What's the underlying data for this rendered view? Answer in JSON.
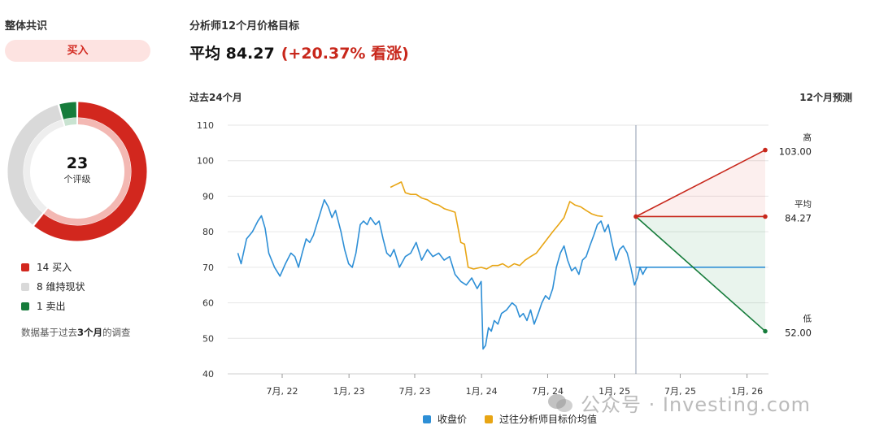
{
  "consensus": {
    "title": "整体共识",
    "rating": "买入",
    "total": "23",
    "total_unit": "个评级",
    "legend": [
      {
        "label": "14 买入",
        "count": 14,
        "color": "#d2271e"
      },
      {
        "label": "8 维持现状",
        "count": 8,
        "color": "#d9d9d9"
      },
      {
        "label": "1 卖出",
        "count": 1,
        "color": "#167c3b"
      }
    ],
    "note_prefix": "数据基于过去",
    "note_bold": "3个月",
    "note_suffix": "的调查"
  },
  "target": {
    "title": "分析师12个月价格目标",
    "average_text": "平均 84.27",
    "change_text": "(+20.37% 看涨)"
  },
  "chart_labels": {
    "past": "过去24个月",
    "forecast": "12个月预测",
    "high_label": "高",
    "high_value": "103.00",
    "avg_label": "平均",
    "avg_value": "84.27",
    "low_label": "低",
    "low_value": "52.00"
  },
  "chart_data": {
    "type": "line",
    "ylim": [
      40,
      110
    ],
    "y_ticks": [
      110,
      100,
      90,
      80,
      70,
      60,
      50,
      40
    ],
    "x_ticks": [
      "7月, 22",
      "1月, 23",
      "7月, 23",
      "1月, 24",
      "7月, 24",
      "1月, 25",
      "7月, 25",
      "1月, 26"
    ],
    "x_range": [
      "2022-02",
      "2026-03"
    ],
    "forecast_start": "2025-03",
    "series": [
      {
        "name": "收盘价",
        "color": "#2e8fd6",
        "points": [
          [
            "2022-03-01",
            74
          ],
          [
            "2022-03-10",
            71
          ],
          [
            "2022-03-25",
            78
          ],
          [
            "2022-04-10",
            80
          ],
          [
            "2022-04-25",
            83
          ],
          [
            "2022-05-05",
            84.5
          ],
          [
            "2022-05-15",
            81
          ],
          [
            "2022-05-25",
            74
          ],
          [
            "2022-06-10",
            70
          ],
          [
            "2022-06-25",
            67.5
          ],
          [
            "2022-07-10",
            71
          ],
          [
            "2022-07-25",
            74
          ],
          [
            "2022-08-05",
            73
          ],
          [
            "2022-08-15",
            70
          ],
          [
            "2022-08-25",
            74
          ],
          [
            "2022-09-05",
            78
          ],
          [
            "2022-09-15",
            77
          ],
          [
            "2022-09-25",
            79
          ],
          [
            "2022-10-10",
            84
          ],
          [
            "2022-10-25",
            89
          ],
          [
            "2022-11-05",
            87
          ],
          [
            "2022-11-15",
            84
          ],
          [
            "2022-11-25",
            86
          ],
          [
            "2022-12-10",
            80
          ],
          [
            "2022-12-20",
            75
          ],
          [
            "2022-12-31",
            71
          ],
          [
            "2023-01-10",
            70
          ],
          [
            "2023-01-20",
            74
          ],
          [
            "2023-02-01",
            82
          ],
          [
            "2023-02-10",
            83
          ],
          [
            "2023-02-20",
            82
          ],
          [
            "2023-03-01",
            84
          ],
          [
            "2023-03-15",
            82
          ],
          [
            "2023-03-25",
            83
          ],
          [
            "2023-04-05",
            78
          ],
          [
            "2023-04-15",
            74
          ],
          [
            "2023-04-25",
            73
          ],
          [
            "2023-05-05",
            75
          ],
          [
            "2023-05-20",
            70
          ],
          [
            "2023-06-05",
            73
          ],
          [
            "2023-06-20",
            74
          ],
          [
            "2023-07-05",
            77
          ],
          [
            "2023-07-20",
            72
          ],
          [
            "2023-08-05",
            75
          ],
          [
            "2023-08-20",
            73
          ],
          [
            "2023-09-05",
            74
          ],
          [
            "2023-09-20",
            72
          ],
          [
            "2023-10-05",
            73
          ],
          [
            "2023-10-20",
            68
          ],
          [
            "2023-11-05",
            66
          ],
          [
            "2023-11-20",
            65
          ],
          [
            "2023-12-05",
            67
          ],
          [
            "2023-12-20",
            64
          ],
          [
            "2023-12-31",
            66
          ],
          [
            "2024-01-05",
            47
          ],
          [
            "2024-01-12",
            48
          ],
          [
            "2024-01-20",
            53
          ],
          [
            "2024-01-28",
            52
          ],
          [
            "2024-02-05",
            55
          ],
          [
            "2024-02-15",
            54
          ],
          [
            "2024-02-25",
            57
          ],
          [
            "2024-03-10",
            58
          ],
          [
            "2024-03-25",
            60
          ],
          [
            "2024-04-05",
            59
          ],
          [
            "2024-04-15",
            56
          ],
          [
            "2024-04-25",
            57
          ],
          [
            "2024-05-05",
            55
          ],
          [
            "2024-05-15",
            58
          ],
          [
            "2024-05-25",
            54
          ],
          [
            "2024-06-05",
            57
          ],
          [
            "2024-06-15",
            60
          ],
          [
            "2024-06-25",
            62
          ],
          [
            "2024-07-05",
            61
          ],
          [
            "2024-07-15",
            64
          ],
          [
            "2024-07-25",
            70
          ],
          [
            "2024-08-05",
            74
          ],
          [
            "2024-08-15",
            76
          ],
          [
            "2024-08-25",
            72
          ],
          [
            "2024-09-05",
            69
          ],
          [
            "2024-09-15",
            70
          ],
          [
            "2024-09-25",
            68
          ],
          [
            "2024-10-05",
            72
          ],
          [
            "2024-10-15",
            73
          ],
          [
            "2024-10-25",
            76
          ],
          [
            "2024-11-05",
            79
          ],
          [
            "2024-11-15",
            82
          ],
          [
            "2024-11-25",
            83
          ],
          [
            "2024-12-05",
            80
          ],
          [
            "2024-12-15",
            82
          ],
          [
            "2024-12-25",
            77
          ],
          [
            "2025-01-05",
            72
          ],
          [
            "2025-01-15",
            75
          ],
          [
            "2025-01-25",
            76
          ],
          [
            "2025-02-05",
            74
          ],
          [
            "2025-02-15",
            70
          ],
          [
            "2025-02-25",
            65
          ],
          [
            "2025-03-05",
            67
          ],
          [
            "2025-03-12",
            70
          ],
          [
            "2025-03-20",
            68
          ],
          [
            "2025-03-25",
            69
          ],
          [
            "2025-03-31",
            70
          ]
        ]
      },
      {
        "name": "过往分析师目标价均值",
        "color": "#e8a514",
        "points": [
          [
            "2023-04-25",
            92.5
          ],
          [
            "2023-05-05",
            93
          ],
          [
            "2023-05-15",
            93.5
          ],
          [
            "2023-05-25",
            94
          ],
          [
            "2023-06-05",
            91
          ],
          [
            "2023-06-20",
            90.5
          ],
          [
            "2023-07-05",
            90.5
          ],
          [
            "2023-07-20",
            89.5
          ],
          [
            "2023-08-05",
            89
          ],
          [
            "2023-08-20",
            88
          ],
          [
            "2023-09-05",
            87.5
          ],
          [
            "2023-09-20",
            86.5
          ],
          [
            "2023-10-05",
            86
          ],
          [
            "2023-10-20",
            85.5
          ],
          [
            "2023-11-05",
            77
          ],
          [
            "2023-11-15",
            76.5
          ],
          [
            "2023-11-25",
            70
          ],
          [
            "2023-12-10",
            69.5
          ],
          [
            "2023-12-31",
            70
          ],
          [
            "2024-01-15",
            69.5
          ],
          [
            "2024-01-31",
            70.5
          ],
          [
            "2024-02-15",
            70.5
          ],
          [
            "2024-02-28",
            71
          ],
          [
            "2024-03-15",
            70
          ],
          [
            "2024-03-31",
            71
          ],
          [
            "2024-04-15",
            70.5
          ],
          [
            "2024-04-30",
            72
          ],
          [
            "2024-05-15",
            73
          ],
          [
            "2024-05-31",
            74
          ],
          [
            "2024-06-15",
            76
          ],
          [
            "2024-06-30",
            78
          ],
          [
            "2024-07-15",
            80
          ],
          [
            "2024-07-31",
            82
          ],
          [
            "2024-08-15",
            84
          ],
          [
            "2024-08-31",
            88.5
          ],
          [
            "2024-09-15",
            87.5
          ],
          [
            "2024-09-30",
            87
          ],
          [
            "2024-10-15",
            86
          ],
          [
            "2024-10-31",
            85
          ],
          [
            "2024-11-15",
            84.5
          ],
          [
            "2024-11-30",
            84.3
          ]
        ]
      }
    ],
    "last_close": 70,
    "forecast": {
      "high": 103.0,
      "average": 84.27,
      "low": 52.0,
      "start_value": 84.27
    },
    "colors": {
      "high": "#c8271b",
      "average": "#c8271b",
      "low": "#167c3b"
    },
    "legend_placement": "bottom",
    "grid": true
  },
  "watermark": "公众号 · Investing.com"
}
